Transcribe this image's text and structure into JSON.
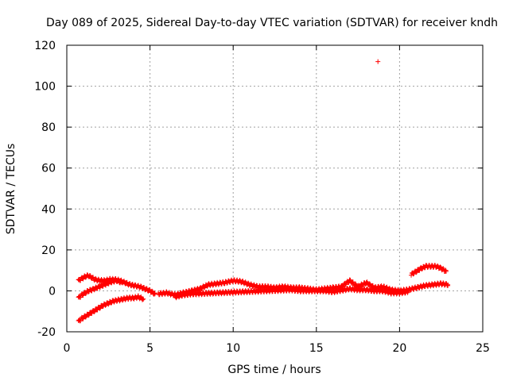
{
  "chart_data": {
    "type": "scatter",
    "title": "Day 089 of 2025, Sidereal Day-to-day VTEC variation (SDTVAR) for receiver kndh",
    "xlabel": "GPS time / hours",
    "ylabel": "SDTVAR / TECUs",
    "xlim": [
      0,
      25
    ],
    "ylim": [
      -20,
      120
    ],
    "xticks": [
      0,
      5,
      10,
      15,
      20,
      25
    ],
    "yticks": [
      -20,
      0,
      20,
      40,
      60,
      80,
      100,
      120
    ],
    "xtick_labels": [
      "0",
      "5",
      "10",
      "15",
      "20",
      "25"
    ],
    "ytick_labels": [
      "-20",
      "0",
      "20",
      "40",
      "60",
      "80",
      "100",
      "120"
    ],
    "grid": true,
    "marker": "plus",
    "color": "#ff0000",
    "series": [
      {
        "name": "upper-early-track",
        "x": [
          0.7,
          0.9,
          1.1,
          1.3,
          1.5,
          1.7,
          2.0,
          2.3,
          2.6,
          2.9,
          3.2,
          3.5,
          3.8,
          4.1,
          4.4,
          4.7,
          5.0,
          5.3
        ],
        "y": [
          5,
          6,
          7,
          7.5,
          6.5,
          5.5,
          5,
          5,
          5.5,
          5.5,
          5,
          4,
          3,
          2.5,
          2,
          1,
          0,
          -1.5
        ]
      },
      {
        "name": "middle-early-track",
        "x": [
          0.7,
          0.9,
          1.1,
          1.3,
          1.5,
          1.8,
          2.1,
          2.4,
          2.7,
          3.0,
          3.3
        ],
        "y": [
          -3.5,
          -2,
          -1,
          0,
          0.5,
          1.5,
          2.5,
          3.5,
          4.5,
          5,
          4
        ]
      },
      {
        "name": "lower-early-track",
        "x": [
          0.7,
          0.9,
          1.1,
          1.3,
          1.6,
          1.9,
          2.2,
          2.5,
          2.8,
          3.1,
          3.4,
          3.7,
          4.0,
          4.3,
          4.6
        ],
        "y": [
          -15,
          -13.5,
          -12.5,
          -11.5,
          -10,
          -8.5,
          -7,
          -6,
          -5,
          -4.5,
          -4,
          -3.5,
          -3.5,
          -3,
          -4
        ]
      },
      {
        "name": "continuous-track",
        "x": [
          5.5,
          6.0,
          6.5,
          7.0,
          7.5,
          8.0,
          8.5,
          9.0,
          9.5,
          10.0,
          10.5,
          11.0,
          11.5,
          12.0,
          12.5,
          13.0,
          13.5,
          14.0,
          14.5,
          15.0,
          15.5,
          16.0,
          16.5,
          17.0,
          17.5,
          18.0,
          18.5,
          19.0,
          19.5,
          20.0,
          20.5,
          21.0,
          21.5,
          22.0,
          22.5,
          22.9
        ],
        "y": [
          -1.5,
          -1,
          -2,
          -1,
          0,
          1,
          3,
          3.5,
          4,
          5,
          4.5,
          3,
          2,
          2,
          1.5,
          2,
          1.5,
          1.5,
          1,
          0.5,
          1,
          1.5,
          2,
          5,
          2,
          4,
          1.5,
          2,
          0.5,
          0,
          0.5,
          1.5,
          2.5,
          3,
          3.5,
          3
        ]
      },
      {
        "name": "secondary-track",
        "x": [
          6.5,
          7.0,
          7.5,
          13.5,
          14.0,
          15.5,
          16.0,
          17.0,
          17.5,
          18.0,
          18.5,
          19.0,
          19.5,
          20.0,
          20.5
        ],
        "y": [
          -3,
          -2,
          -1.5,
          0.5,
          0,
          0,
          -0.5,
          1,
          0.5,
          0.5,
          0,
          0,
          -1,
          -1,
          -0.5
        ]
      },
      {
        "name": "late-high-track",
        "x": [
          20.7,
          21.0,
          21.3,
          21.6,
          21.9,
          22.2,
          22.5,
          22.8
        ],
        "y": [
          8,
          9.5,
          11,
          12,
          12,
          12,
          11,
          9.5
        ]
      },
      {
        "name": "outlier",
        "x": [
          18.7
        ],
        "y": [
          112
        ]
      }
    ]
  }
}
